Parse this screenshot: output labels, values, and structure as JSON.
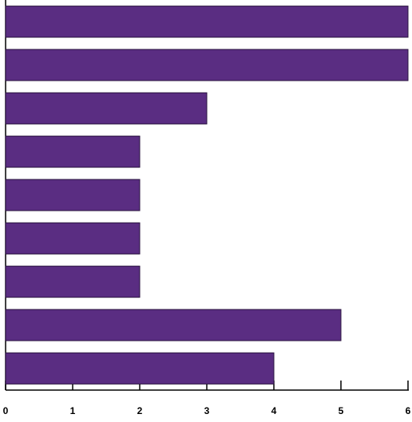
{
  "chart_data": {
    "type": "bar",
    "orientation": "horizontal",
    "categories": [
      null,
      null,
      null,
      null,
      null,
      null,
      null,
      null,
      null
    ],
    "values": [
      6,
      6,
      3,
      2,
      2,
      2,
      2,
      5,
      4
    ],
    "color": "#5a2d82",
    "xlim": [
      0,
      6
    ],
    "xticks": [
      0,
      1,
      2,
      3,
      4,
      5,
      6
    ],
    "grid": false
  }
}
